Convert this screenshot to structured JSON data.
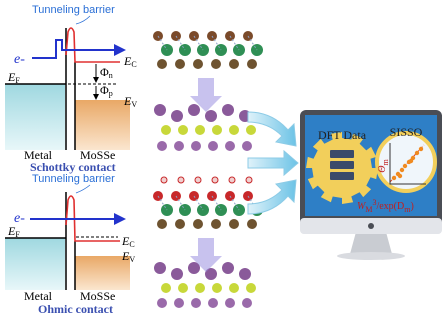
{
  "schottky": {
    "barrier_label": "Tunneling barrier",
    "electron": "e-",
    "fermi": {
      "symbol": "E",
      "sub": "F"
    },
    "conduction": {
      "symbol": "E",
      "sub": "C"
    },
    "valence": {
      "symbol": "E",
      "sub": "V"
    },
    "phi_n": {
      "symbol": "Φ",
      "sub": "n"
    },
    "phi_p": {
      "symbol": "Φ",
      "sub": "p"
    },
    "metal": "Metal",
    "semiconductor": "MoSSe",
    "caption": "Schottky contact"
  },
  "ohmic": {
    "barrier_label": "Tunneling barrier",
    "electron": "e-",
    "fermi": {
      "symbol": "E",
      "sub": "F"
    },
    "conduction": {
      "symbol": "E",
      "sub": "C"
    },
    "valence": {
      "symbol": "E",
      "sub": "V"
    },
    "metal": "Metal",
    "semiconductor": "MoSSe",
    "caption": "Ohmic contact"
  },
  "monitor": {
    "data_label": "DFT Data",
    "method": "SISSO",
    "y_axis": {
      "symbol": "Θ",
      "sub": "m"
    },
    "x_axis": {
      "w": "W",
      "w_sub": "M",
      "w_sup": "3",
      "rest": "/exp(D",
      "d_sub": "m",
      "close": ")"
    }
  }
}
